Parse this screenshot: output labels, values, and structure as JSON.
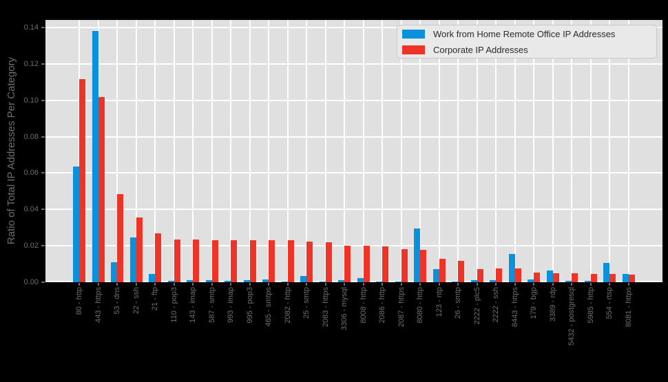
{
  "colors": {
    "page_bg": "#000000",
    "plot_bg": "#e0e0e0",
    "grid": "#ffffff",
    "axis_text": "#6e6e6e",
    "legend_bg": "#e9e9e9",
    "legend_border": "#c9c9c9",
    "legend_text": "#2a2a2a",
    "wfh_blue": "#0991dc",
    "corporate_red": "#ee3327"
  },
  "chart_data": {
    "type": "bar",
    "title": "",
    "xlabel": "",
    "ylabel": "Ratio of Total IP Addresses Per Category",
    "ylim": [
      0,
      0.1442
    ],
    "grid": true,
    "legend_position": "top-right",
    "ytick_values": [
      0,
      0.02,
      0.04,
      0.06,
      0.08,
      0.1,
      0.12,
      0.14
    ],
    "ytick_labels": [
      "0.00",
      "0.02",
      "0.04",
      "0.06",
      "0.08",
      "0.10",
      "0.12",
      "0.14"
    ],
    "categories": [
      "80 - http",
      "443 - https",
      "53 - dns",
      "22 - ssh",
      "21 - ftp",
      "110 - pop3",
      "143 - imap",
      "587 - smtp",
      "993 - imap",
      "995 - pop3",
      "465 - smtps",
      "2082 - http",
      "25 - smtp",
      "2083 - https",
      "3306 - mysql",
      "8008 - http",
      "2086 - http",
      "2087 - https",
      "8080 - http",
      "123 - ntp",
      "26 - smtp",
      "2222 - plc5",
      "2222 - ssh",
      "8443 - https",
      "179 - bgp",
      "3389 - rdp",
      "5432 - postgresql",
      "5985 - http",
      "554 - rtsp",
      "8081 - https"
    ],
    "series": [
      {
        "name": "Work from Home Remote Office IP Addresses",
        "color": "#0991dc",
        "values": [
          0.0637,
          0.138,
          0.011,
          0.0245,
          0.0047,
          0.0008,
          0.0011,
          0.0012,
          0.0008,
          0.0013,
          0.0015,
          0.0004,
          0.0035,
          0.0003,
          0.001,
          0.0021,
          0.0003,
          0.0003,
          0.0295,
          0.0073,
          0.0002,
          0.0013,
          0.0013,
          0.0156,
          0.0016,
          0.0063,
          0.0006,
          0.0006,
          0.0105,
          0.0044
        ]
      },
      {
        "name": "Corporate IP Addresses",
        "color": "#ee3327",
        "values": [
          0.1115,
          0.1017,
          0.0484,
          0.0357,
          0.0267,
          0.0235,
          0.0235,
          0.023,
          0.023,
          0.0232,
          0.023,
          0.0232,
          0.0222,
          0.0218,
          0.02,
          0.02,
          0.0196,
          0.0182,
          0.0177,
          0.0127,
          0.0119,
          0.0073,
          0.0076,
          0.0076,
          0.0054,
          0.0051,
          0.0051,
          0.0044,
          0.0044,
          0.004
        ]
      }
    ]
  }
}
